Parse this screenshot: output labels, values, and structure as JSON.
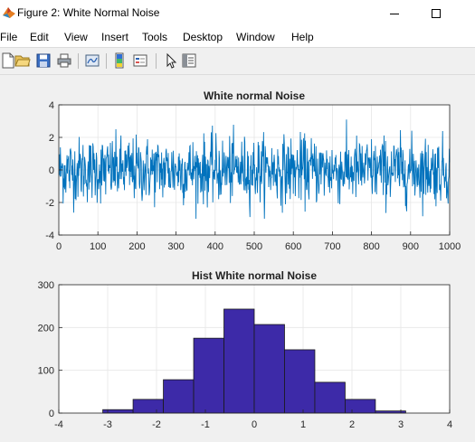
{
  "window": {
    "title": "Figure 2: White Normal Noise",
    "icon": "matlab-icon"
  },
  "menu": [
    "File",
    "Edit",
    "View",
    "Insert",
    "Tools",
    "Desktop",
    "Window",
    "Help"
  ],
  "toolbar": {
    "buttons": [
      "new-figure-icon",
      "open-file-icon",
      "save-icon",
      "print-icon",
      "link-plot-icon",
      "insert-colorbar-icon",
      "insert-legend-icon",
      "edit-plot-icon",
      "property-editor-icon"
    ]
  },
  "colors": {
    "line": "#0072bd",
    "bar_fill": "#3d2aa8",
    "grid": "#e6e6e6"
  },
  "chart_data": [
    {
      "type": "line",
      "title": "White normal Noise",
      "xlabel": "",
      "ylabel": "",
      "xlim": [
        0,
        1000
      ],
      "ylim": [
        -4,
        4
      ],
      "xticks": [
        "0",
        "100",
        "200",
        "300",
        "400",
        "500",
        "600",
        "700",
        "800",
        "900",
        "1000"
      ],
      "yticks": [
        "-4",
        "-2",
        "0",
        "2",
        "4"
      ],
      "grid": true,
      "series": [
        {
          "samples": 1000,
          "distribution": "normal",
          "mean": 0,
          "std": 1,
          "min": -3,
          "max": 3.1
        }
      ]
    },
    {
      "type": "bar",
      "title": "Hist White normal Noise",
      "xlabel": "",
      "ylabel": "",
      "xlim": [
        -4,
        4
      ],
      "ylim": [
        0,
        300
      ],
      "xticks": [
        "-4",
        "-3",
        "-2",
        "-1",
        "0",
        "1",
        "2",
        "3",
        "4"
      ],
      "yticks": [
        "0",
        "100",
        "200",
        "300"
      ],
      "grid": true,
      "bin_edges": [
        -3.1,
        -2.48,
        -1.86,
        -1.24,
        -0.62,
        0.0,
        0.62,
        1.24,
        1.86,
        2.48,
        3.1
      ],
      "counts": [
        8,
        32,
        78,
        175,
        243,
        207,
        148,
        72,
        32,
        5
      ]
    }
  ]
}
